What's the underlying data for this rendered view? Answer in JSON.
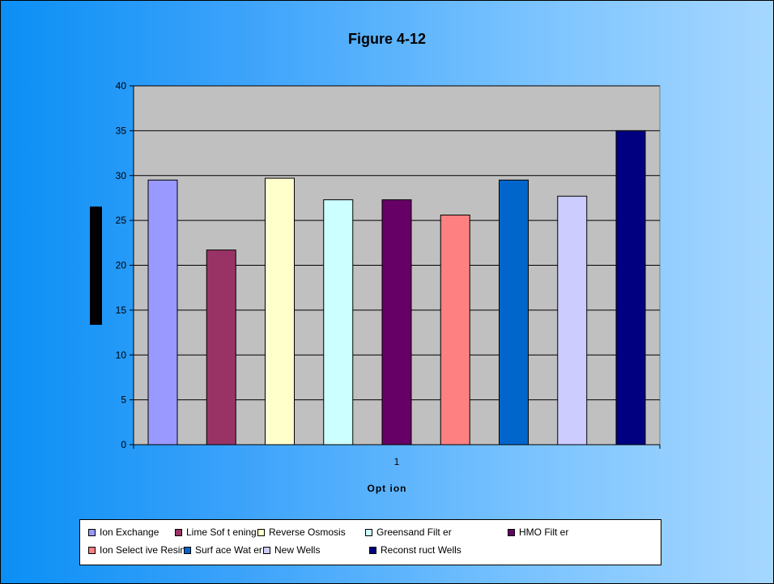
{
  "chart_data": {
    "type": "bar",
    "title": "Figure 4-12",
    "xlabel": "Opt ion",
    "ylabel": "",
    "categories": [
      "1"
    ],
    "ylim": [
      0,
      40
    ],
    "yticks": [
      0,
      5,
      10,
      15,
      20,
      25,
      30,
      35,
      40
    ],
    "grid": true,
    "legend_position": "bottom",
    "series": [
      {
        "name": "Ion Exchange",
        "values": [
          29.5
        ],
        "color": "#9999ff"
      },
      {
        "name": "Lime Sof t ening",
        "values": [
          21.7
        ],
        "color": "#993366"
      },
      {
        "name": "Reverse Osmosis",
        "values": [
          29.7
        ],
        "color": "#ffffcc"
      },
      {
        "name": "Greensand Filt er",
        "values": [
          27.3
        ],
        "color": "#ccffff"
      },
      {
        "name": "HMO Filt er",
        "values": [
          27.3
        ],
        "color": "#660066"
      },
      {
        "name": "Ion Select ive Resins",
        "values": [
          25.6
        ],
        "color": "#ff8080"
      },
      {
        "name": "Surf ace Wat er",
        "values": [
          29.5
        ],
        "color": "#0066cc"
      },
      {
        "name": "New Wells",
        "values": [
          27.7
        ],
        "color": "#ccccff"
      },
      {
        "name": "Reconst ruct Wells",
        "values": [
          35.0
        ],
        "color": "#000080"
      }
    ]
  }
}
